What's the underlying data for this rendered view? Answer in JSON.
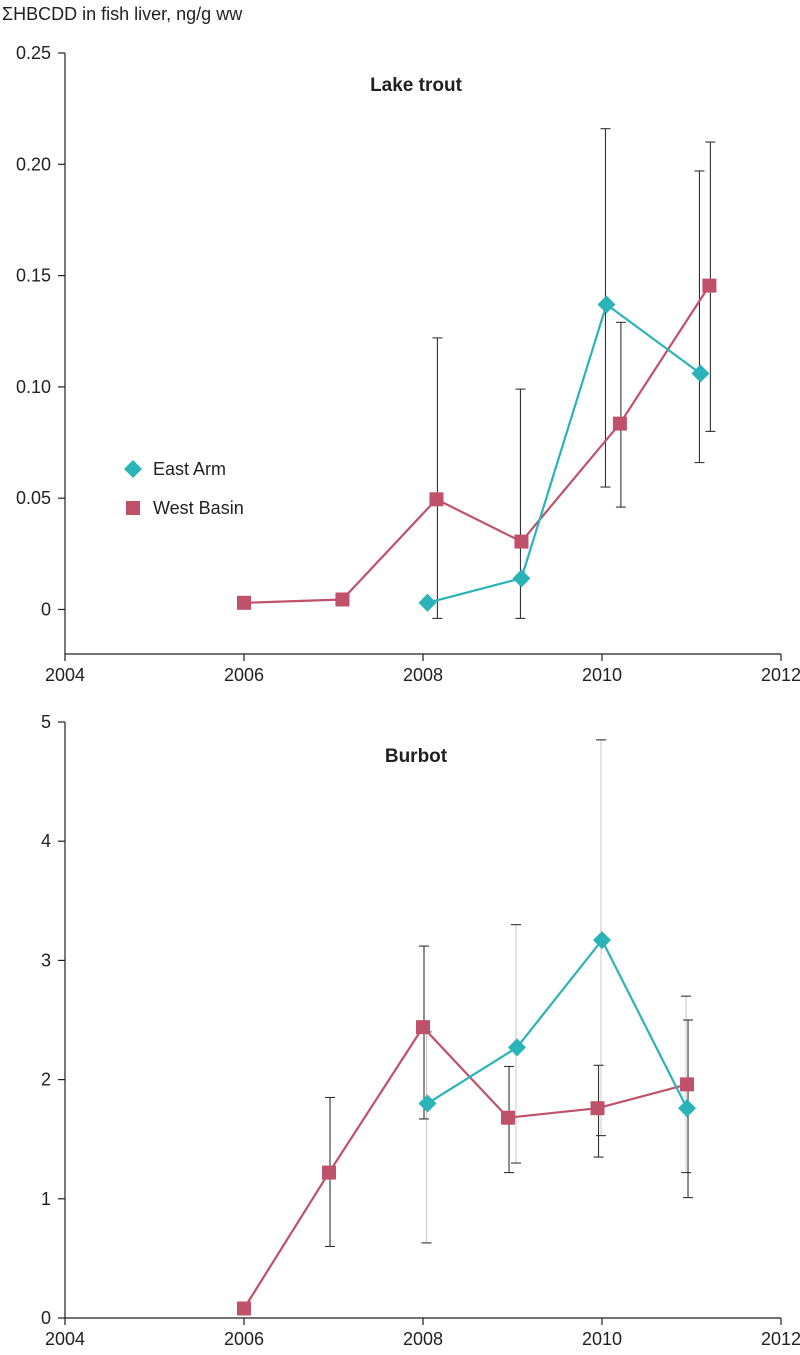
{
  "ylabel": "ΣHBCDD in fish liver, ng/g ww",
  "colors": {
    "east_arm": "#2ab3b8",
    "west_basin": "#c0516a",
    "axis": "#231f20",
    "error_bar": "#333333"
  },
  "legend": [
    {
      "name": "East Arm",
      "marker": "diamond"
    },
    {
      "name": "West Basin",
      "marker": "square"
    }
  ],
  "chart_data": [
    {
      "type": "line",
      "title": "Lake trout",
      "xlim": [
        2004,
        2012
      ],
      "ylim": [
        -0.02,
        0.25
      ],
      "xticks": [
        2004,
        2006,
        2008,
        2010,
        2012
      ],
      "xtick_labels": [
        "2004",
        "2006",
        "2008",
        "2010",
        "2012"
      ],
      "yticks": [
        0,
        0.05,
        0.1,
        0.15,
        0.2,
        0.25
      ],
      "ytick_labels": [
        "0",
        "0.05",
        "0.10",
        "0.15",
        "0.20",
        "0.25"
      ],
      "legend_position": "left-middle",
      "series": [
        {
          "name": "East Arm",
          "marker": "diamond",
          "points": [
            {
              "x": 2008.05,
              "y": 0.003
            },
            {
              "x": 2009.1,
              "y": 0.014,
              "err_low": -0.004,
              "err_high": 0.099
            },
            {
              "x": 2010.05,
              "y": 0.137,
              "err_low": 0.055,
              "err_high": 0.216
            },
            {
              "x": 2011.1,
              "y": 0.106,
              "err_low": 0.066,
              "err_high": 0.197
            }
          ]
        },
        {
          "name": "West Basin",
          "marker": "square",
          "points": [
            {
              "x": 2006.0,
              "y": 0.003
            },
            {
              "x": 2007.1,
              "y": 0.0045
            },
            {
              "x": 2008.15,
              "y": 0.0495,
              "err_low": -0.004,
              "err_high": 0.122
            },
            {
              "x": 2009.1,
              "y": 0.0305
            },
            {
              "x": 2010.2,
              "y": 0.0835,
              "err_low": 0.046,
              "err_high": 0.129
            },
            {
              "x": 2011.2,
              "y": 0.1455,
              "err_low": 0.08,
              "err_high": 0.21
            }
          ]
        }
      ]
    },
    {
      "type": "line",
      "title": "Burbot",
      "xlim": [
        2004,
        2012
      ],
      "ylim": [
        0,
        5
      ],
      "xticks": [
        2004,
        2006,
        2008,
        2010,
        2012
      ],
      "xtick_labels": [
        "2004",
        "2006",
        "2008",
        "2010",
        "2012"
      ],
      "yticks": [
        0,
        1,
        2,
        3,
        4,
        5
      ],
      "ytick_labels": [
        "0",
        "1",
        "2",
        "3",
        "4",
        "5"
      ],
      "series": [
        {
          "name": "East Arm",
          "marker": "diamond",
          "points": [
            {
              "x": 2008.05,
              "y": 1.8,
              "err_low": 0.63,
              "err_high": 2.4
            },
            {
              "x": 2009.05,
              "y": 2.27,
              "err_low": 1.3,
              "err_high": 3.3
            },
            {
              "x": 2010.0,
              "y": 3.17,
              "err_low": 1.53,
              "err_high": 4.85
            },
            {
              "x": 2010.95,
              "y": 1.76,
              "err_low": 1.22,
              "err_high": 2.7
            }
          ]
        },
        {
          "name": "West Basin",
          "marker": "square",
          "points": [
            {
              "x": 2006.0,
              "y": 0.08
            },
            {
              "x": 2006.95,
              "y": 1.22,
              "err_low": 0.6,
              "err_high": 1.85
            },
            {
              "x": 2008.0,
              "y": 2.44,
              "err_low": 1.67,
              "err_high": 3.12
            },
            {
              "x": 2008.95,
              "y": 1.68,
              "err_low": 1.22,
              "err_high": 2.11
            },
            {
              "x": 2009.95,
              "y": 1.76,
              "err_low": 1.35,
              "err_high": 2.12
            },
            {
              "x": 2010.95,
              "y": 1.96,
              "err_low": 1.01,
              "err_high": 2.5
            }
          ]
        }
      ]
    }
  ]
}
